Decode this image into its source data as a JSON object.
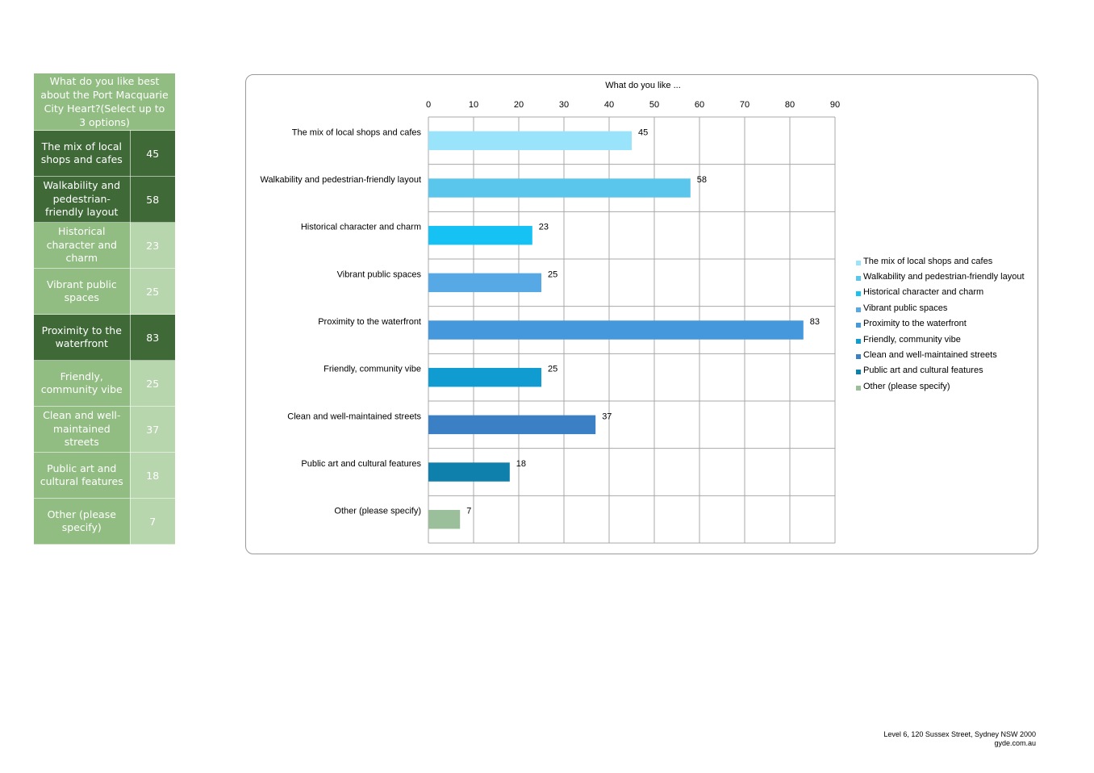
{
  "table": {
    "header": "What do you like best about the Port Macquarie City Heart?(Select up to 3 options)",
    "rows": [
      {
        "label": "The mix of local shops and cafes",
        "value": "45",
        "tone": "dark"
      },
      {
        "label": "Walkability and pedestrian-friendly layout",
        "value": "58",
        "tone": "dark"
      },
      {
        "label": "Historical character and charm",
        "value": "23",
        "tone": "light"
      },
      {
        "label": "Vibrant public spaces",
        "value": "25",
        "tone": "light"
      },
      {
        "label": "Proximity to the waterfront",
        "value": "83",
        "tone": "dark"
      },
      {
        "label": "Friendly, community vibe",
        "value": "25",
        "tone": "light"
      },
      {
        "label": "Clean and well-maintained streets",
        "value": "37",
        "tone": "light"
      },
      {
        "label": "Public art and cultural features",
        "value": "18",
        "tone": "light"
      },
      {
        "label": "Other (please specify)",
        "value": "7",
        "tone": "light"
      }
    ]
  },
  "chart_data": {
    "type": "bar",
    "orientation": "horizontal",
    "title": "What do you like ...",
    "categories": [
      "The mix of local shops and cafes",
      "Walkability and pedestrian-friendly layout",
      "Historical character and charm",
      "Vibrant public spaces",
      "Proximity to the waterfront",
      "Friendly, community vibe",
      "Clean and well-maintained streets",
      "Public art and cultural features",
      "Other (please specify)"
    ],
    "values": [
      45,
      58,
      23,
      25,
      83,
      25,
      37,
      18,
      7
    ],
    "colors": [
      "#99e3fb",
      "#5bc6ec",
      "#16c2f3",
      "#56a9e4",
      "#4698dd",
      "#109bd1",
      "#3b80c4",
      "#0f7fab",
      "#9bbf9a"
    ],
    "xlim": [
      0,
      90
    ],
    "xticks": [
      0,
      10,
      20,
      30,
      40,
      50,
      60,
      70,
      80,
      90
    ],
    "xaxis_position": "top",
    "grid": true,
    "legend_position": "right"
  },
  "footer": {
    "address": "Level 6, 120 Sussex Street, Sydney NSW 2000",
    "website": "gyde.com.au"
  }
}
